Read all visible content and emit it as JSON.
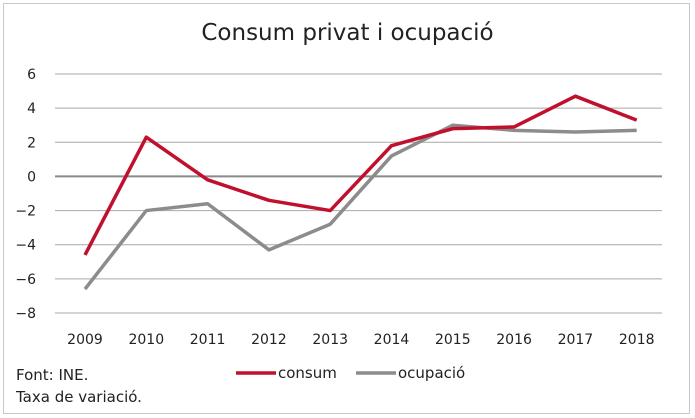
{
  "chart_data": {
    "type": "line",
    "title": "Consum privat i ocupació",
    "categories": [
      "2009",
      "2010",
      "2011",
      "2012",
      "2013",
      "2014",
      "2015",
      "2016",
      "2017",
      "2018"
    ],
    "series": [
      {
        "name": "consum",
        "color": "#c0102e",
        "values": [
          -4.6,
          2.3,
          -0.2,
          -1.4,
          -2.0,
          1.8,
          2.8,
          2.9,
          4.7,
          3.3
        ]
      },
      {
        "name": "ocupació",
        "color": "#8c8c8c",
        "values": [
          -6.6,
          -2.0,
          -1.6,
          -4.3,
          -2.8,
          1.2,
          3.0,
          2.7,
          2.6,
          2.7
        ]
      }
    ],
    "yticks": [
      6,
      4,
      2,
      0,
      -2,
      -4,
      -6,
      -8
    ],
    "ytick_labels": [
      "6",
      "4",
      "2",
      "0",
      "−2",
      "−4",
      "−6",
      "−8"
    ],
    "ylim": [
      -8,
      6
    ],
    "xlabel": "",
    "ylabel": "",
    "grid": true,
    "legend_position": "bottom-center"
  },
  "footnotes": {
    "source": "Font: INE.",
    "note": "Taxa de variació."
  }
}
